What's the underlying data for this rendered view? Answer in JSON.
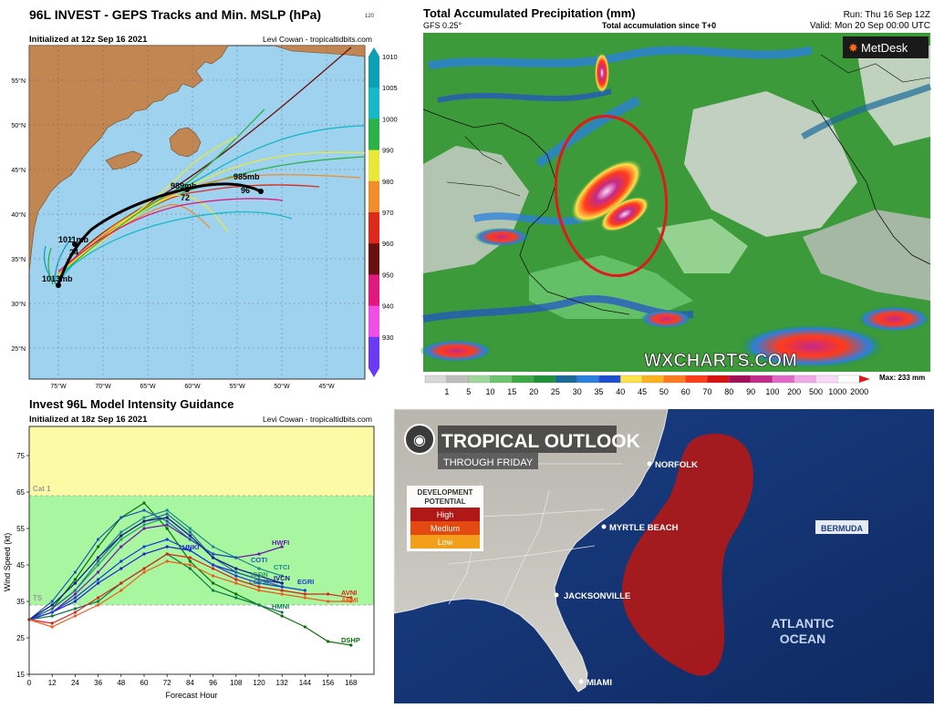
{
  "geps": {
    "title": "96L INVEST - GEPS Tracks and Min. MSLP (hPa)",
    "small_num": "120",
    "initialized": "Initialized at 12z Sep 16 2021",
    "credit": "Levi Cowan - tropicaltidbits.com",
    "lat_labels": [
      "55°N",
      "50°N",
      "45°N",
      "40°N",
      "35°N",
      "30°N",
      "25°N"
    ],
    "lon_labels": [
      "75°W",
      "70°W",
      "65°W",
      "60°W",
      "55°W",
      "50°W",
      "45°W"
    ],
    "colorbar_labels": [
      "1010",
      "1005",
      "1000",
      "990",
      "980",
      "970",
      "960",
      "950",
      "940",
      "930"
    ],
    "colorbar_colors": [
      "#0f9fb5",
      "#16b8c9",
      "#2cb14a",
      "#e8e83a",
      "#f08d2a",
      "#dd2a1d",
      "#6a0f0f",
      "#e0197c",
      "#f04fe6",
      "#6a3bf2"
    ],
    "pressure_labels": [
      {
        "text": "985mb"
      },
      {
        "text": "989mb"
      },
      {
        "text": "72"
      },
      {
        "text": "96"
      },
      {
        "text": "1011mb"
      },
      {
        "text": "24"
      },
      {
        "text": "1013mb"
      }
    ]
  },
  "precip": {
    "title": "Total Accumulated Precipitation (mm)",
    "model": "GFS 0.25°",
    "subtitle": "Total accumulation since T+0",
    "run": "Run: Thu 16 Sep 12Z",
    "valid": "Valid: Mon 20 Sep 00:00 UTC",
    "brand": "MetDesk",
    "watermark": "WXCHARTS.COM",
    "max_label": "Max: 233 mm",
    "scale_labels": [
      "1",
      "5",
      "10",
      "15",
      "20",
      "25",
      "30",
      "35",
      "40",
      "45",
      "50",
      "60",
      "70",
      "80",
      "90",
      "100",
      "200",
      "500",
      "1000",
      "2000"
    ],
    "scale_colors": [
      "#d8d8d8",
      "#bdbdbd",
      "#9fd79a",
      "#6cc46d",
      "#3ea845",
      "#1f8f3a",
      "#1b6a9a",
      "#2a7fe0",
      "#1f4fd0",
      "#ffe34a",
      "#ffb21f",
      "#ff7a1c",
      "#ff3b1a",
      "#d61111",
      "#a50e5a",
      "#c22a8b",
      "#e068c8",
      "#f0a8e8",
      "#f8d8f4",
      "#ffffff"
    ]
  },
  "intensity": {
    "title": "Invest 96L Model Intensity Guidance",
    "initialized": "Initialized at 18z Sep 16 2021",
    "credit": "Levi Cowan - tropicaltidbits.com",
    "ylabel": "Wind Speed (kt)",
    "xlabel": "Forecast Hour",
    "cat1_label": "Cat 1",
    "ts_label": "TS",
    "model_labels": [
      "HWFI",
      "COTI",
      "CTCI",
      "UNKI",
      "ICON",
      "LGEM",
      "IVCN",
      "EGRI",
      "AVNI",
      "AEMI",
      "HMNI",
      "DSHP"
    ]
  },
  "chart_data": {
    "type": "line",
    "title": "Invest 96L Model Intensity Guidance",
    "xlabel": "Forecast Hour",
    "ylabel": "Wind Speed (kt)",
    "x": [
      0,
      12,
      24,
      36,
      48,
      60,
      72,
      84,
      96,
      108,
      120,
      132,
      144,
      156,
      168
    ],
    "xticks": [
      0,
      12,
      24,
      36,
      48,
      60,
      72,
      84,
      96,
      108,
      120,
      132,
      144,
      156,
      168
    ],
    "yticks": [
      15,
      25,
      35,
      45,
      55,
      65,
      75
    ],
    "xlim": [
      0,
      180
    ],
    "ylim": [
      15,
      83
    ],
    "bands": [
      {
        "label": "TS",
        "from": 34,
        "to": 64,
        "color": "#a8f7a0"
      },
      {
        "label": "Cat 1",
        "from": 64,
        "to": 83,
        "color": "#fdfaa6"
      }
    ],
    "series": [
      {
        "name": "DSHP",
        "color": "#0a6e0a",
        "values": [
          30,
          33,
          41,
          50,
          58,
          62,
          55,
          46,
          40,
          37,
          34,
          31,
          28,
          24,
          23
        ]
      },
      {
        "name": "HMNI",
        "color": "#0a7a4a",
        "values": [
          30,
          31,
          33,
          35,
          40,
          44,
          48,
          44,
          38,
          36,
          34,
          32,
          null,
          null,
          null
        ]
      },
      {
        "name": "HWFI",
        "color": "#6a1aa8",
        "values": [
          30,
          32,
          37,
          43,
          50,
          55,
          56,
          52,
          48,
          47,
          48,
          50,
          null,
          null,
          null
        ]
      },
      {
        "name": "CTCI",
        "color": "#1a8a8a",
        "values": [
          30,
          34,
          40,
          47,
          54,
          58,
          60,
          55,
          50,
          47,
          44,
          42,
          null,
          null,
          null
        ]
      },
      {
        "name": "COTI",
        "color": "#1a5ab8",
        "values": [
          30,
          35,
          43,
          52,
          58,
          60,
          57,
          52,
          48,
          47,
          null,
          null,
          null,
          null,
          null
        ]
      },
      {
        "name": "UNKI",
        "color": "#2222cc",
        "values": [
          30,
          32,
          35,
          40,
          44,
          48,
          50,
          49,
          45,
          43,
          41,
          40,
          null,
          null,
          null
        ]
      },
      {
        "name": "ICON",
        "color": "#2a9a6a",
        "values": [
          30,
          33,
          38,
          45,
          52,
          56,
          58,
          53,
          47,
          44,
          42,
          40,
          null,
          null,
          null
        ]
      },
      {
        "name": "LGEM",
        "color": "#2a6a9a",
        "values": [
          30,
          33,
          38,
          46,
          53,
          57,
          59,
          54,
          47,
          43,
          41,
          39,
          null,
          null,
          null
        ]
      },
      {
        "name": "IVCN",
        "color": "#1a1a8a",
        "values": [
          30,
          34,
          40,
          47,
          53,
          57,
          58,
          53,
          47,
          44,
          42,
          40,
          null,
          null,
          null
        ]
      },
      {
        "name": "EGRI",
        "color": "#1a3ad8",
        "values": [
          30,
          32,
          36,
          41,
          46,
          50,
          52,
          49,
          45,
          42,
          40,
          39,
          38,
          null,
          null
        ]
      },
      {
        "name": "AVNI",
        "color": "#e0201a",
        "values": [
          30,
          29,
          32,
          36,
          40,
          44,
          48,
          47,
          44,
          41,
          39,
          38,
          37,
          37,
          36
        ]
      },
      {
        "name": "AEMI",
        "color": "#f05a1a",
        "values": [
          30,
          28,
          31,
          34,
          38,
          43,
          46,
          45,
          42,
          40,
          38,
          37,
          36,
          35,
          35
        ]
      }
    ]
  },
  "outlook": {
    "title": "TROPICAL OUTLOOK",
    "subtitle": "THROUGH FRIDAY",
    "legend_title": "DEVELOPMENT POTENTIAL",
    "legend_items": [
      {
        "label": "High",
        "color": "#b01818"
      },
      {
        "label": "Medium",
        "color": "#e34a12"
      },
      {
        "label": "Low",
        "color": "#f2a01c"
      }
    ],
    "cities": [
      "NORFOLK",
      "MYRTLE BEACH",
      "JACKSONVILLE",
      "MIAMI"
    ],
    "bermuda": "BERMUDA",
    "ocean": "ATLANTIC OCEAN"
  }
}
